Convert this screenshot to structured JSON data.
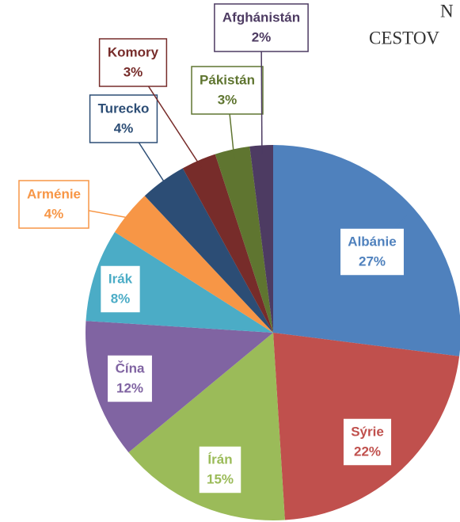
{
  "chart_data": {
    "type": "pie",
    "title_lines": [
      "N",
      "CESTOV"
    ],
    "categories": [
      "Albánie",
      "Sýrie",
      "Írán",
      "Čína",
      "Irák",
      "Arménie",
      "Turecko",
      "Komory",
      "Pákistán",
      "Afghánistán"
    ],
    "values": [
      27,
      22,
      15,
      12,
      8,
      4,
      4,
      3,
      3,
      2
    ],
    "value_labels": [
      "27%",
      "22%",
      "15%",
      "12%",
      "8%",
      "4%",
      "4%",
      "3%",
      "3%",
      "2%"
    ],
    "colors": [
      "#4f81bd",
      "#c0504d",
      "#9bbb59",
      "#8064a2",
      "#4bacc6",
      "#f79646",
      "#2c4d75",
      "#772c2a",
      "#5f7530",
      "#4d3b62"
    ]
  }
}
